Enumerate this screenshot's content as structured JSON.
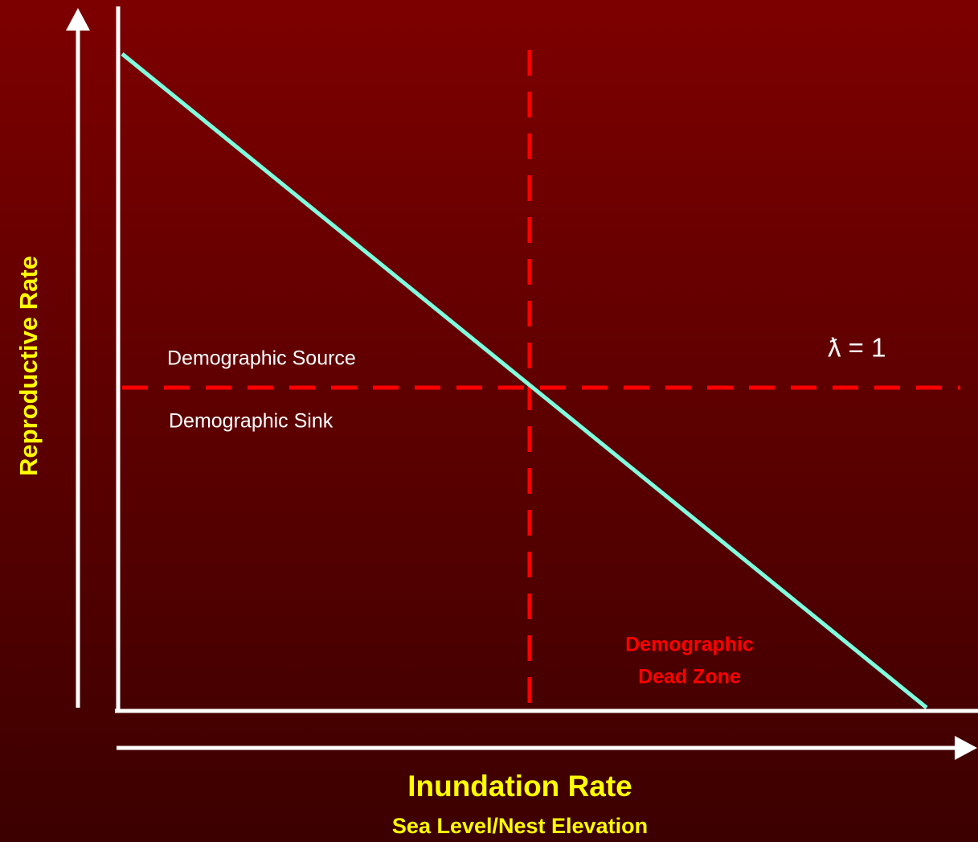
{
  "axes": {
    "y_label": "Reproductive Rate",
    "x_label": "Inundation Rate",
    "x_sublabel": "Sea Level/Nest Elevation"
  },
  "annotations": {
    "source": "Demographic Source",
    "sink": "Demographic Sink",
    "dead_zone": [
      "Demographic",
      "Dead Zone"
    ],
    "threshold": "ƛ = 1"
  }
}
